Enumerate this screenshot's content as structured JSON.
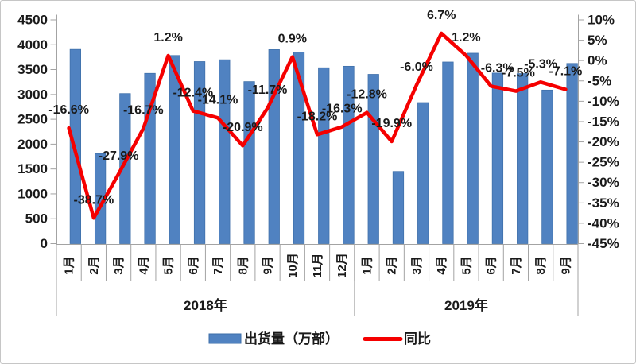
{
  "chart_data": {
    "type": "bar+line",
    "title": "",
    "categories": [
      "1月",
      "2月",
      "3月",
      "4月",
      "5月",
      "6月",
      "7月",
      "8月",
      "9月",
      "10月",
      "11月",
      "12月",
      "1月",
      "2月",
      "3月",
      "4月",
      "5月",
      "6月",
      "7月",
      "8月",
      "9月"
    ],
    "groups": [
      {
        "label": "2018年",
        "start": 0,
        "span": 12
      },
      {
        "label": "2019年",
        "start": 12,
        "span": 9
      }
    ],
    "series": [
      {
        "name": "出货量（万部）",
        "type": "bar",
        "axis": "left",
        "values": [
          3906,
          1812,
          3018,
          3425,
          3784,
          3661,
          3698,
          3259,
          3902,
          3853,
          3537,
          3567,
          3405,
          1451,
          2837,
          3653,
          3829,
          3431,
          3420,
          3088,
          3624
        ]
      },
      {
        "name": "同比",
        "type": "line",
        "axis": "right",
        "values": [
          -16.6,
          -38.7,
          -27.9,
          -16.7,
          1.2,
          -12.4,
          -14.1,
          -20.9,
          -11.7,
          0.9,
          -18.2,
          -16.3,
          -12.8,
          -19.9,
          -6.0,
          6.7,
          1.2,
          -6.3,
          -7.5,
          -5.3,
          -7.1
        ],
        "labels": [
          "-16.6%",
          "-38.7%",
          "-27.9%",
          "-16.7%",
          "1.2%",
          "-12.4%",
          "-14.1%",
          "-20.9%",
          "-11.7%",
          "0.9%",
          "-18.2%",
          "-16.3%",
          "-12.8%",
          "-19.9%",
          "-6.0%",
          "6.7%",
          "1.2%",
          "-6.3%",
          "-7.5%",
          "-5.3%",
          "-7.1%"
        ]
      }
    ],
    "left_axis": {
      "min": 0,
      "max": 4500,
      "step": 500,
      "tick_labels": [
        "4500",
        "4000",
        "3500",
        "3000",
        "2500",
        "2000",
        "1500",
        "1000",
        "500",
        "0"
      ]
    },
    "right_axis": {
      "min": -45,
      "max": 10,
      "step": 5,
      "tick_labels": [
        "10%",
        "5%",
        "0%",
        "-5%",
        "-10%",
        "-15%",
        "-20%",
        "-25%",
        "-30%",
        "-35%",
        "-40%",
        "-45%"
      ]
    },
    "legend": [
      {
        "label": "出货量（万部）",
        "marker": "bar-swatch"
      },
      {
        "label": "同比",
        "marker": "line-swatch"
      }
    ],
    "colors": {
      "bar": "#5082c1",
      "bar_border": "#3e6fa9",
      "line": "#f50000",
      "axis": "#a3a3a3",
      "text": "#1a1a1a"
    },
    "grid": "off",
    "legend_position": "bottom"
  }
}
